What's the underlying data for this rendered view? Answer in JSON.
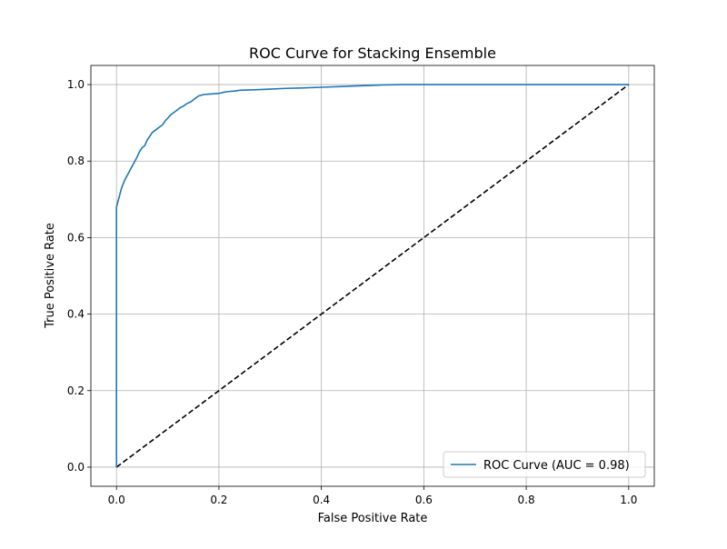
{
  "chart_data": {
    "type": "line",
    "title": "ROC Curve for Stacking Ensemble",
    "xlabel": "False Positive Rate",
    "ylabel": "True Positive Rate",
    "xlim": [
      -0.05,
      1.05
    ],
    "ylim": [
      -0.05,
      1.05
    ],
    "x_ticks": [
      "0.0",
      "0.2",
      "0.4",
      "0.6",
      "0.8",
      "1.0"
    ],
    "y_ticks": [
      "0.0",
      "0.2",
      "0.4",
      "0.6",
      "0.8",
      "1.0"
    ],
    "grid": true,
    "legend_position": "lower-right",
    "series": [
      {
        "name": "ROC Curve (AUC = 0.98)",
        "color": "#1f77b4",
        "style": "solid",
        "x": [
          0.0,
          0.0,
          0.002,
          0.004,
          0.006,
          0.008,
          0.01,
          0.013,
          0.016,
          0.02,
          0.024,
          0.028,
          0.032,
          0.036,
          0.04,
          0.045,
          0.05,
          0.055,
          0.06,
          0.065,
          0.07,
          0.075,
          0.08,
          0.085,
          0.09,
          0.095,
          0.1,
          0.105,
          0.11,
          0.115,
          0.12,
          0.125,
          0.13,
          0.135,
          0.14,
          0.145,
          0.15,
          0.155,
          0.16,
          0.165,
          0.17,
          0.18,
          0.19,
          0.2,
          0.21,
          0.22,
          0.23,
          0.24,
          0.26,
          0.28,
          0.3,
          0.33,
          0.36,
          0.4,
          0.44,
          0.48,
          0.5,
          0.52,
          0.56,
          0.6,
          0.7,
          0.8,
          0.9,
          1.0
        ],
        "y": [
          0.0,
          0.68,
          0.69,
          0.7,
          0.71,
          0.72,
          0.73,
          0.74,
          0.75,
          0.76,
          0.77,
          0.78,
          0.79,
          0.8,
          0.81,
          0.825,
          0.835,
          0.84,
          0.855,
          0.865,
          0.875,
          0.88,
          0.885,
          0.89,
          0.895,
          0.905,
          0.912,
          0.92,
          0.925,
          0.93,
          0.935,
          0.94,
          0.943,
          0.948,
          0.952,
          0.955,
          0.96,
          0.965,
          0.97,
          0.972,
          0.974,
          0.975,
          0.976,
          0.977,
          0.98,
          0.982,
          0.983,
          0.985,
          0.986,
          0.987,
          0.988,
          0.99,
          0.991,
          0.993,
          0.995,
          0.997,
          0.998,
          0.999,
          1.0,
          1.0,
          1.0,
          1.0,
          1.0,
          1.0
        ]
      },
      {
        "name": "",
        "color": "#000000",
        "style": "dashed",
        "x": [
          0.0,
          1.0
        ],
        "y": [
          0.0,
          1.0
        ]
      }
    ]
  }
}
